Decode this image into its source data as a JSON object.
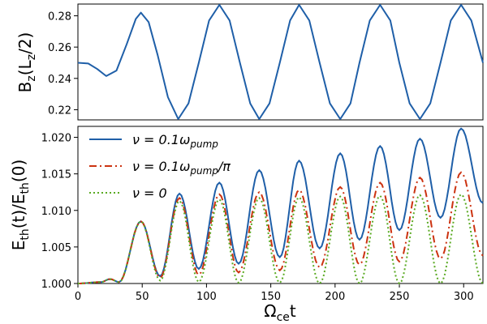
{
  "chart_data": [
    {
      "type": "line",
      "title": "",
      "ylabel_main": "B",
      "ylabel_sub": "z",
      "ylabel_arg_main": "L",
      "ylabel_arg_sub": "z",
      "ylabel_tail": "/2)",
      "xlim": [
        0,
        315
      ],
      "ylim": [
        0.2135,
        0.2875
      ],
      "yticks": [
        "0.22",
        "0.24",
        "0.26",
        "0.28"
      ],
      "ytick_values": [
        0.22,
        0.24,
        0.26,
        0.28
      ],
      "series": [
        {
          "name": "B_z(L_z/2)",
          "color": "#1f5fa8",
          "x": [
            0,
            8,
            15,
            22,
            30,
            38,
            45,
            49,
            55,
            62,
            70,
            78,
            86,
            94,
            102,
            110,
            118,
            126,
            134,
            141,
            149,
            157,
            165,
            172,
            180,
            188,
            196,
            204,
            212,
            219,
            227,
            235,
            243,
            250,
            258,
            266,
            274,
            282,
            290,
            298,
            306,
            315
          ],
          "y": [
            0.25,
            0.2495,
            0.246,
            0.2415,
            0.245,
            0.262,
            0.278,
            0.282,
            0.276,
            0.255,
            0.228,
            0.214,
            0.224,
            0.25,
            0.277,
            0.287,
            0.277,
            0.25,
            0.224,
            0.214,
            0.224,
            0.25,
            0.277,
            0.287,
            0.277,
            0.25,
            0.224,
            0.214,
            0.224,
            0.25,
            0.277,
            0.287,
            0.277,
            0.25,
            0.224,
            0.214,
            0.224,
            0.25,
            0.277,
            0.287,
            0.277,
            0.25
          ]
        }
      ]
    },
    {
      "type": "line",
      "title": "",
      "xlabel_main": "Ω",
      "xlabel_sub": "ce",
      "xlabel_tail": "t",
      "ylabel_main": "E",
      "ylabel_sub": "th",
      "ylabel_mid": "(t)/E",
      "ylabel_sub2": "th",
      "ylabel_tail": "(0)",
      "xlim": [
        0,
        315
      ],
      "ylim": [
        1.0,
        1.0215
      ],
      "xticks": [
        "0",
        "50",
        "100",
        "150",
        "200",
        "250",
        "300"
      ],
      "xtick_values": [
        0,
        50,
        100,
        150,
        200,
        250,
        300
      ],
      "yticks": [
        "1.000",
        "1.005",
        "1.010",
        "1.015",
        "1.020"
      ],
      "ytick_values": [
        1.0,
        1.005,
        1.01,
        1.015,
        1.02
      ],
      "legend_position": "top-left",
      "series": [
        {
          "name": "ν = 0.1ω",
          "name_sub": "pump",
          "name_tail": "",
          "color": "#1f5fa8",
          "style": "solid",
          "peaks_x": [
            49,
            79,
            110,
            141,
            172,
            204,
            235,
            266,
            298
          ],
          "peaks_y": [
            1.0085,
            1.0123,
            1.0138,
            1.0155,
            1.0168,
            1.0178,
            1.0188,
            1.0198,
            1.0212
          ],
          "troughs_x": [
            0,
            18,
            25,
            32,
            64,
            94,
            125,
            157,
            188,
            219,
            250,
            282,
            315
          ],
          "troughs_y": [
            1.0,
            1.0002,
            1.0006,
            1.0002,
            1.001,
            1.002,
            1.0027,
            1.0036,
            1.0048,
            1.006,
            1.0073,
            1.009,
            1.011
          ]
        },
        {
          "name": "ν = 0.1ω",
          "name_sub": "pump",
          "name_tail": "/π",
          "color": "#cc3311",
          "style": "dashdot",
          "peaks_x": [
            49,
            79,
            110,
            141,
            172,
            204,
            235,
            266,
            298
          ],
          "peaks_y": [
            1.0085,
            1.0117,
            1.0122,
            1.0125,
            1.0128,
            1.0132,
            1.0138,
            1.0145,
            1.0152
          ],
          "troughs_x": [
            0,
            18,
            25,
            32,
            64,
            94,
            125,
            157,
            188,
            219,
            250,
            282,
            315
          ],
          "troughs_y": [
            1.0,
            1.0002,
            1.0006,
            1.0002,
            1.0008,
            1.0012,
            1.0015,
            1.0018,
            1.0022,
            1.0026,
            1.003,
            1.0034,
            1.0038
          ]
        },
        {
          "name": "ν = 0",
          "name_sub": "",
          "name_tail": "",
          "color": "#5aaa22",
          "style": "dotted",
          "peaks_x": [
            49,
            79,
            110,
            141,
            172,
            204,
            235,
            266,
            298
          ],
          "peaks_y": [
            1.0085,
            1.0113,
            1.0115,
            1.0117,
            1.0118,
            1.0119,
            1.012,
            1.0121,
            1.0122
          ],
          "troughs_x": [
            0,
            18,
            25,
            32,
            64,
            94,
            125,
            157,
            188,
            219,
            250,
            282,
            315
          ],
          "troughs_y": [
            1.0,
            1.0002,
            1.0006,
            1.0002,
            1.0004,
            1.0002,
            1.0001,
            1.0001,
            1.0,
            1.0,
            1.0,
            1.0,
            1.0
          ]
        }
      ]
    }
  ]
}
